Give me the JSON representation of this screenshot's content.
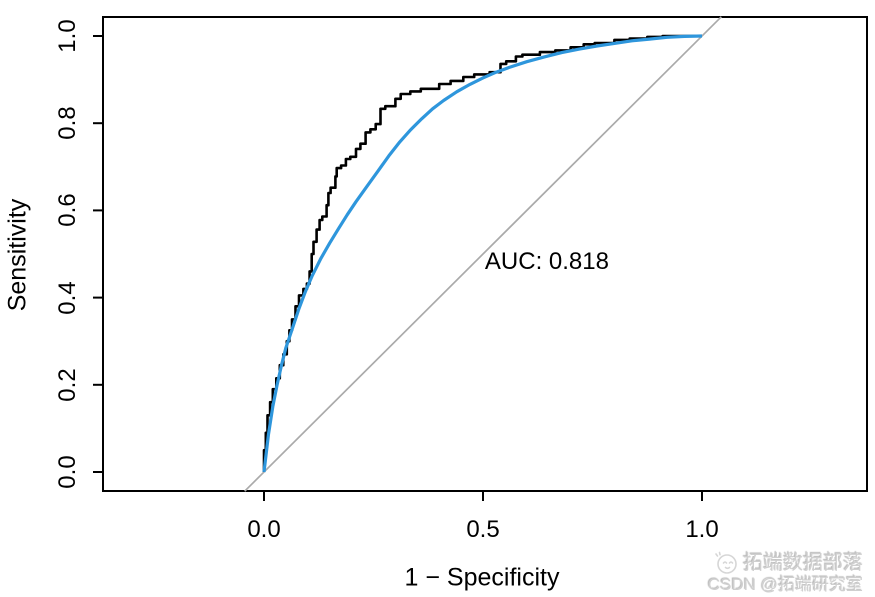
{
  "chart_data": {
    "type": "line",
    "title": "",
    "xlabel": "1 − Specificity",
    "ylabel": "Sensitivity",
    "x_ticks": [
      "0.0",
      "0.5",
      "1.0"
    ],
    "x_tick_values": [
      0,
      0.5,
      1
    ],
    "y_ticks": [
      "0.0",
      "0.2",
      "0.4",
      "0.6",
      "0.8",
      "1.0"
    ],
    "y_tick_values": [
      0,
      0.2,
      0.4,
      0.6,
      0.8,
      1
    ],
    "xlim": [
      0,
      1
    ],
    "ylim": [
      0,
      1
    ],
    "grid": false,
    "legend": "none",
    "auc": 0.818,
    "annotation": {
      "text": "AUC: 0.818",
      "x": 0.646,
      "y": 0.482
    },
    "colors": {
      "empirical": "#000000",
      "smooth": "#2E96DC",
      "chance": "#AAAAAA",
      "axis": "#000000"
    },
    "series": [
      {
        "name": "empirical-roc",
        "style": "step",
        "color": "#000000",
        "width": 2.6,
        "points": [
          [
            0,
            0
          ],
          [
            0.004,
            0.05
          ],
          [
            0.008,
            0.09
          ],
          [
            0.014,
            0.13
          ],
          [
            0.02,
            0.16
          ],
          [
            0.028,
            0.19
          ],
          [
            0.036,
            0.215
          ],
          [
            0.044,
            0.245
          ],
          [
            0.052,
            0.27
          ],
          [
            0.058,
            0.3
          ],
          [
            0.064,
            0.325
          ],
          [
            0.072,
            0.35
          ],
          [
            0.08,
            0.38
          ],
          [
            0.09,
            0.405
          ],
          [
            0.098,
            0.42
          ],
          [
            0.104,
            0.432
          ],
          [
            0.109,
            0.46
          ],
          [
            0.113,
            0.5
          ],
          [
            0.12,
            0.528
          ],
          [
            0.127,
            0.556
          ],
          [
            0.133,
            0.578
          ],
          [
            0.143,
            0.586
          ],
          [
            0.147,
            0.612
          ],
          [
            0.152,
            0.64
          ],
          [
            0.163,
            0.652
          ],
          [
            0.166,
            0.678
          ],
          [
            0.176,
            0.697
          ],
          [
            0.187,
            0.703
          ],
          [
            0.197,
            0.718
          ],
          [
            0.21,
            0.723
          ],
          [
            0.22,
            0.741
          ],
          [
            0.232,
            0.753
          ],
          [
            0.243,
            0.779
          ],
          [
            0.255,
            0.786
          ],
          [
            0.266,
            0.798
          ],
          [
            0.277,
            0.833
          ],
          [
            0.3,
            0.839
          ],
          [
            0.312,
            0.856
          ],
          [
            0.334,
            0.867
          ],
          [
            0.358,
            0.873
          ],
          [
            0.4,
            0.879
          ],
          [
            0.426,
            0.89
          ],
          [
            0.455,
            0.897
          ],
          [
            0.48,
            0.906
          ],
          [
            0.515,
            0.912
          ],
          [
            0.54,
            0.917
          ],
          [
            0.553,
            0.936
          ],
          [
            0.575,
            0.942
          ],
          [
            0.59,
            0.953
          ],
          [
            0.63,
            0.957
          ],
          [
            0.665,
            0.963
          ],
          [
            0.7,
            0.967
          ],
          [
            0.73,
            0.974
          ],
          [
            0.755,
            0.981
          ],
          [
            0.8,
            0.984
          ],
          [
            0.835,
            0.991
          ],
          [
            0.875,
            0.994
          ],
          [
            0.91,
            0.998
          ],
          [
            0.945,
            1
          ],
          [
            1,
            1
          ]
        ]
      },
      {
        "name": "smooth-roc",
        "style": "smooth",
        "color": "#2E96DC",
        "width": 3.2,
        "points": [
          [
            0,
            0
          ],
          [
            0.01,
            0.085
          ],
          [
            0.02,
            0.15
          ],
          [
            0.03,
            0.2
          ],
          [
            0.04,
            0.245
          ],
          [
            0.05,
            0.285
          ],
          [
            0.065,
            0.33
          ],
          [
            0.08,
            0.375
          ],
          [
            0.095,
            0.415
          ],
          [
            0.11,
            0.45
          ],
          [
            0.13,
            0.49
          ],
          [
            0.15,
            0.525
          ],
          [
            0.17,
            0.558
          ],
          [
            0.19,
            0.59
          ],
          [
            0.21,
            0.62
          ],
          [
            0.235,
            0.655
          ],
          [
            0.26,
            0.69
          ],
          [
            0.285,
            0.725
          ],
          [
            0.31,
            0.757
          ],
          [
            0.335,
            0.785
          ],
          [
            0.36,
            0.81
          ],
          [
            0.385,
            0.833
          ],
          [
            0.41,
            0.852
          ],
          [
            0.44,
            0.872
          ],
          [
            0.47,
            0.889
          ],
          [
            0.5,
            0.904
          ],
          [
            0.53,
            0.917
          ],
          [
            0.56,
            0.928
          ],
          [
            0.6,
            0.941
          ],
          [
            0.64,
            0.952
          ],
          [
            0.68,
            0.962
          ],
          [
            0.72,
            0.97
          ],
          [
            0.76,
            0.977
          ],
          [
            0.8,
            0.983
          ],
          [
            0.84,
            0.989
          ],
          [
            0.88,
            0.993
          ],
          [
            0.92,
            0.997
          ],
          [
            0.96,
            0.999
          ],
          [
            1,
            1
          ]
        ]
      },
      {
        "name": "chance-line",
        "style": "line",
        "color": "#AAAAAA",
        "width": 1.7,
        "points": [
          [
            -0.044,
            -0.044
          ],
          [
            1.044,
            1.044
          ]
        ]
      }
    ]
  },
  "watermark": {
    "line1": "拓端数据部落",
    "line2": "CSDN @拓端研究室",
    "icon": "smiley-face-icon"
  }
}
